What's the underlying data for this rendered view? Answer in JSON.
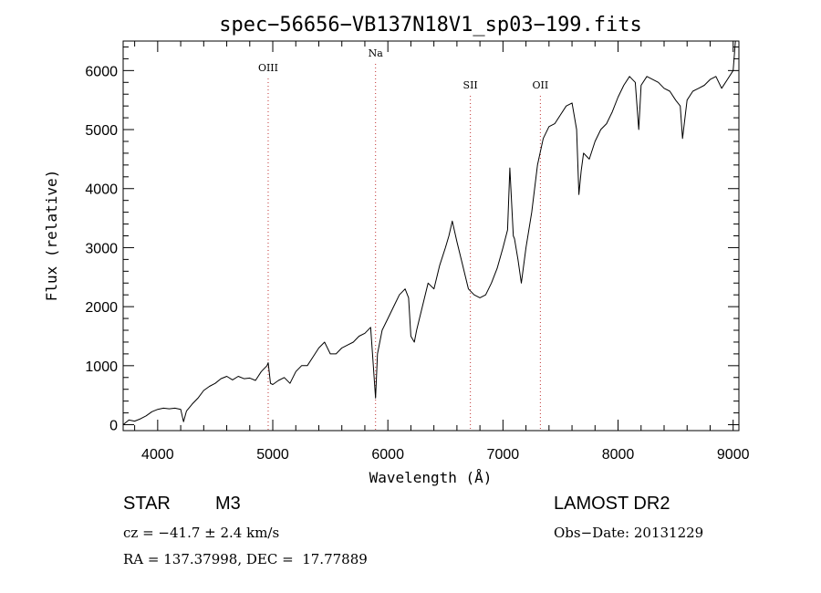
{
  "chart_data": {
    "type": "line",
    "title": "spec−56656−VB137N18V1_sp03−199.fits",
    "xlabel": "Wavelength (Å)",
    "ylabel": "Flux (relative)",
    "xlim": [
      3700,
      9050
    ],
    "ylim": [
      -100,
      6500
    ],
    "x_ticks": [
      4000,
      5000,
      6000,
      7000,
      8000,
      9000
    ],
    "y_ticks": [
      0,
      1000,
      2000,
      3000,
      4000,
      5000,
      6000
    ],
    "x_tick_labels": [
      "4000",
      "5000",
      "6000",
      "7000",
      "8000",
      "9000"
    ],
    "y_tick_labels": [
      "0",
      "1000",
      "2000",
      "3000",
      "4000",
      "5000",
      "6000"
    ],
    "grid": false,
    "lines": [
      {
        "label": "OIII",
        "x": 4960
      },
      {
        "label": "Na",
        "x": 5893
      },
      {
        "label": "OII",
        "x": 7325
      },
      {
        "label": "SII",
        "x": 6717
      }
    ],
    "series": [
      {
        "x": [
          3700,
          3750,
          3800,
          3850,
          3900,
          3950,
          4000,
          4050,
          4100,
          4150,
          4200,
          4225,
          4250,
          4300,
          4350,
          4400,
          4450,
          4500,
          4550,
          4600,
          4650,
          4700,
          4750,
          4800,
          4850,
          4900,
          4950,
          4960,
          4980,
          5000,
          5050,
          5100,
          5150,
          5200,
          5250,
          5300,
          5350,
          5400,
          5450,
          5500,
          5550,
          5600,
          5650,
          5700,
          5750,
          5800,
          5850,
          5870,
          5893,
          5910,
          5950,
          6000,
          6050,
          6100,
          6150,
          6180,
          6200,
          6230,
          6250,
          6300,
          6350,
          6400,
          6450,
          6500,
          6530,
          6560,
          6600,
          6650,
          6700,
          6750,
          6800,
          6850,
          6900,
          6950,
          7000,
          7040,
          7060,
          7090,
          7100,
          7130,
          7160,
          7200,
          7250,
          7300,
          7350,
          7400,
          7450,
          7500,
          7550,
          7600,
          7640,
          7660,
          7680,
          7700,
          7750,
          7800,
          7850,
          7900,
          7950,
          8000,
          8050,
          8100,
          8150,
          8180,
          8200,
          8250,
          8300,
          8350,
          8400,
          8450,
          8500,
          8540,
          8560,
          8600,
          8650,
          8700,
          8750,
          8800,
          8850,
          8900,
          8950,
          9000,
          9020
        ],
        "values": [
          0,
          80,
          60,
          100,
          150,
          220,
          260,
          280,
          270,
          280,
          260,
          50,
          230,
          350,
          450,
          580,
          650,
          700,
          780,
          820,
          760,
          820,
          780,
          790,
          750,
          900,
          1000,
          1050,
          700,
          680,
          750,
          800,
          700,
          900,
          1000,
          1000,
          1150,
          1300,
          1400,
          1200,
          1200,
          1300,
          1350,
          1400,
          1500,
          1550,
          1650,
          1100,
          450,
          1200,
          1600,
          1800,
          2000,
          2200,
          2300,
          2150,
          1500,
          1400,
          1600,
          2000,
          2400,
          2300,
          2700,
          3000,
          3200,
          3450,
          3100,
          2700,
          2300,
          2200,
          2150,
          2200,
          2400,
          2650,
          3000,
          3300,
          4350,
          3200,
          3150,
          2800,
          2400,
          3000,
          3600,
          4400,
          4850,
          5050,
          5100,
          5250,
          5400,
          5450,
          5000,
          3900,
          4300,
          4600,
          4500,
          4800,
          5000,
          5100,
          5300,
          5550,
          5750,
          5900,
          5800,
          5000,
          5750,
          5900,
          5850,
          5800,
          5700,
          5650,
          5500,
          5400,
          4850,
          5500,
          5650,
          5700,
          5750,
          5850,
          5900,
          5700,
          5850,
          6000,
          6500
        ]
      }
    ]
  },
  "info": {
    "object_class": "STAR",
    "subclass": "M3",
    "survey": "LAMOST DR2",
    "cz": "cz = −41.7 ± 2.4 km/s",
    "obs_date": "Obs−Date: 20131229",
    "coords": "RA = 137.37998, DEC =  17.77889"
  }
}
